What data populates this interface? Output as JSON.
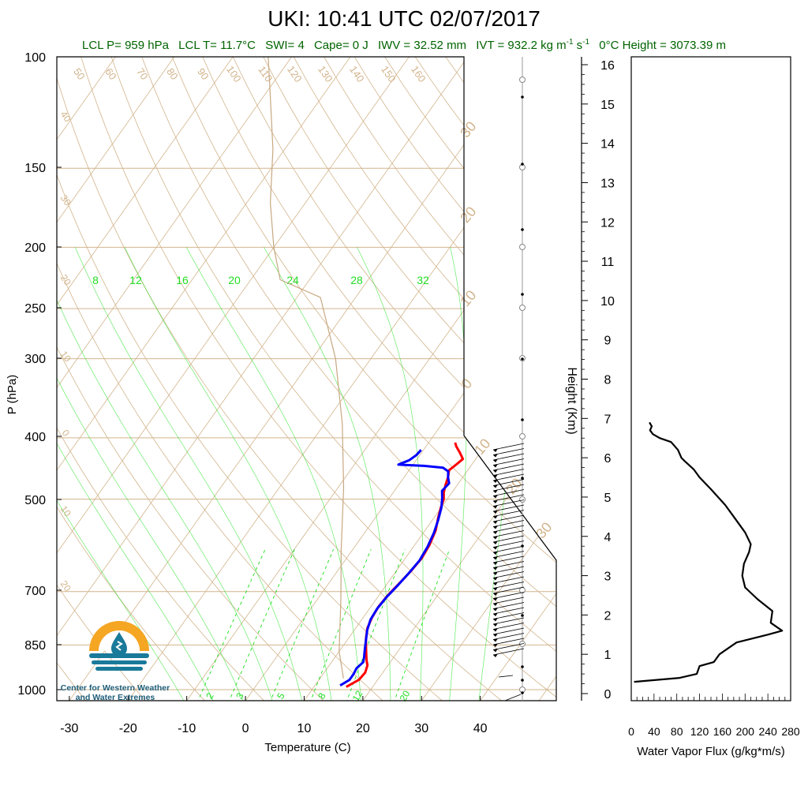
{
  "header": {
    "title": "UKI: 10:41 UTC 02/07/2017",
    "lcl_p": "LCL P= 959 hPa",
    "lcl_t": "LCL T= 11.7°C",
    "swi": "SWI= 4",
    "cape": "Cape= 0 J",
    "iwv": "IWV = 32.52 mm",
    "ivt_prefix": "IVT = 932.2 kg m",
    "ivt_exp1": "-1",
    "ivt_mid": " s",
    "ivt_exp2": "-1",
    "zero_c": "0°C Height = 3073.39 m"
  },
  "logo": {
    "line1": "Center for Western Weather",
    "line2": "and Water Extremes",
    "colors": {
      "sun": "#f5a623",
      "water": "#1a7a9a"
    }
  },
  "chart_data": [
    {
      "type": "line",
      "subtype": "skew-t log-p",
      "title": "",
      "xlabel": "Temperature (C)",
      "ylabel": "P (hPa)",
      "xlim": [
        -35,
        45
      ],
      "ylim": [
        1050,
        100
      ],
      "log_y": true,
      "x_ticks": [
        -30,
        -20,
        -10,
        0,
        10,
        20,
        30,
        40
      ],
      "y_ticks": [
        100,
        150,
        200,
        250,
        300,
        400,
        500,
        700,
        850,
        1000
      ],
      "mixing_ratio_labels_top": [
        "8",
        "12",
        "16",
        "20",
        "24",
        "28",
        "32"
      ],
      "mixing_ratio_labels_bottom": [
        "2",
        "3",
        "5",
        "8",
        "12",
        "20"
      ],
      "dry_adiabat_labels": [
        "50",
        "60",
        "70",
        "80",
        "90",
        "100",
        "110",
        "120",
        "130",
        "140",
        "150",
        "160"
      ],
      "isotherm_labels_left": [
        "40",
        "30",
        "20",
        "10",
        "0",
        "10",
        "20"
      ],
      "isotherm_labels_right": [
        "30",
        "20",
        "10",
        "0",
        "10",
        "20",
        "30"
      ],
      "colors": {
        "temperature": "#ff0000",
        "dewpoint": "#0000ff",
        "background": "#d2b48c",
        "mixing": "#00dd00",
        "parcel": "#c8a882"
      },
      "series": [
        {
          "role": "temperature",
          "points": [
            [
              15.5,
              990
            ],
            [
              16.8,
              965
            ],
            [
              17.0,
              940
            ],
            [
              16.5,
              915
            ],
            [
              15.8,
              900
            ],
            [
              15.0,
              880
            ],
            [
              14.2,
              860
            ],
            [
              13.0,
              830
            ],
            [
              12.0,
              800
            ],
            [
              11.5,
              770
            ],
            [
              11.3,
              740
            ],
            [
              11.5,
              710
            ],
            [
              12.0,
              680
            ],
            [
              12.5,
              650
            ],
            [
              12.8,
              620
            ],
            [
              12.5,
              590
            ],
            [
              11.8,
              560
            ],
            [
              10.7,
              535
            ],
            [
              9.9,
              515
            ],
            [
              9.4,
              500
            ],
            [
              8.6,
              488
            ],
            [
              8.0,
              475
            ],
            [
              7.5,
              462
            ],
            [
              6.8,
              450
            ],
            [
              7.4,
              440
            ],
            [
              7.8,
              432
            ],
            [
              6.5,
              422
            ],
            [
              5.2,
              413
            ],
            [
              4.5,
              407
            ]
          ]
        },
        {
          "role": "dewpoint",
          "points": [
            [
              14.3,
              985
            ],
            [
              15.2,
              965
            ],
            [
              15.2,
              945
            ],
            [
              15.0,
              925
            ],
            [
              15.4,
              905
            ],
            [
              15.0,
              890
            ],
            [
              14.5,
              875
            ],
            [
              14.0,
              860
            ],
            [
              13.2,
              835
            ],
            [
              12.2,
              805
            ],
            [
              11.5,
              775
            ],
            [
              11.3,
              745
            ],
            [
              11.5,
              715
            ],
            [
              12.0,
              685
            ],
            [
              12.4,
              655
            ],
            [
              12.7,
              625
            ],
            [
              12.4,
              595
            ],
            [
              11.8,
              565
            ],
            [
              11.0,
              540
            ],
            [
              10.0,
              515
            ],
            [
              9.0,
              498
            ],
            [
              8.1,
              485
            ],
            [
              8.4,
              472
            ],
            [
              7.5,
              462
            ],
            [
              6.8,
              452
            ],
            [
              5.5,
              446
            ],
            [
              2.0,
              443
            ],
            [
              -2.5,
              441
            ],
            [
              -1.2,
              434
            ],
            [
              -0.6,
              426
            ],
            [
              -0.4,
              418
            ]
          ]
        },
        {
          "role": "parcel",
          "points": [
            [
              14.0,
              960
            ],
            [
              10.0,
              870
            ],
            [
              4.0,
              720
            ],
            [
              -2.0,
              600
            ],
            [
              -9.0,
              480
            ],
            [
              -17.0,
              380
            ],
            [
              -26.0,
              300
            ],
            [
              -36.0,
              240
            ],
            [
              -45.0,
              225
            ],
            [
              -50.0,
              200
            ],
            [
              -56.0,
              170
            ],
            [
              -62.0,
              140
            ],
            [
              -69.0,
              115
            ],
            [
              -74.0,
              100
            ]
          ]
        }
      ]
    },
    {
      "type": "line",
      "title": "",
      "xlabel": "Water Vapor Flux (g/kg*m/s)",
      "ylabel": "Height (Km)",
      "xlim": [
        0,
        280
      ],
      "ylim": [
        0,
        16
      ],
      "x_ticks": [
        "0",
        "40",
        "80",
        "120",
        "160",
        "200",
        "240",
        "280"
      ],
      "y_ticks": [
        "0",
        "1",
        "2",
        "3",
        "4",
        "5",
        "6",
        "7",
        "8",
        "9",
        "10",
        "11",
        "12",
        "13",
        "14",
        "15",
        "16"
      ],
      "series": [
        {
          "role": "water-vapor-flux",
          "points": [
            [
              5,
              0.3
            ],
            [
              85,
              0.4
            ],
            [
              115,
              0.5
            ],
            [
              120,
              0.7
            ],
            [
              145,
              0.8
            ],
            [
              155,
              1.0
            ],
            [
              165,
              1.1
            ],
            [
              185,
              1.3
            ],
            [
              240,
              1.5
            ],
            [
              265,
              1.6
            ],
            [
              245,
              1.8
            ],
            [
              248,
              2.1
            ],
            [
              222,
              2.4
            ],
            [
              200,
              2.7
            ],
            [
              195,
              3.0
            ],
            [
              198,
              3.3
            ],
            [
              207,
              3.6
            ],
            [
              210,
              3.8
            ],
            [
              200,
              4.1
            ],
            [
              185,
              4.4
            ],
            [
              165,
              4.8
            ],
            [
              140,
              5.2
            ],
            [
              120,
              5.5
            ],
            [
              110,
              5.7
            ],
            [
              95,
              5.9
            ],
            [
              88,
              6.0
            ],
            [
              82,
              6.2
            ],
            [
              70,
              6.4
            ],
            [
              50,
              6.5
            ],
            [
              38,
              6.6
            ],
            [
              33,
              6.7
            ],
            [
              36,
              6.8
            ],
            [
              32,
              6.9
            ]
          ]
        }
      ]
    }
  ]
}
